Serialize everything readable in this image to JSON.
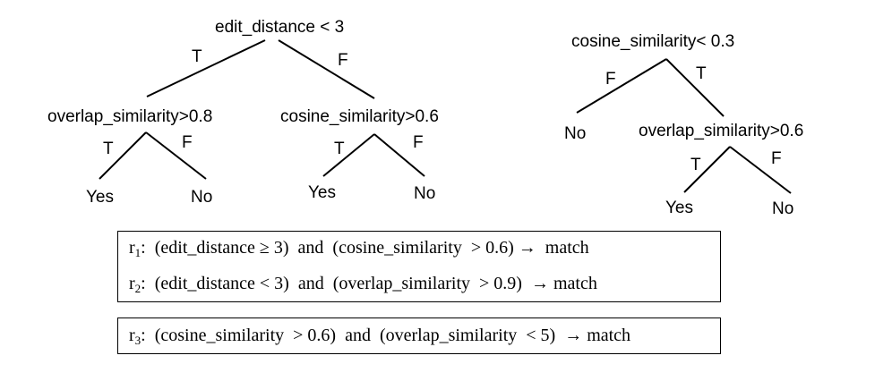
{
  "tree1": {
    "root": "edit_distance < 3",
    "root_true_edge": "T",
    "root_false_edge": "F",
    "left_node": "overlap_similarity>0.8",
    "left_true_edge": "T",
    "left_false_edge": "F",
    "left_true_leaf": "Yes",
    "left_false_leaf": "No",
    "right_node": "cosine_similarity>0.6",
    "right_true_edge": "T",
    "right_false_edge": "F",
    "right_true_leaf": "Yes",
    "right_false_leaf": "No"
  },
  "tree2": {
    "root": "cosine_similarity< 0.3",
    "root_false_edge": "F",
    "root_true_edge": "T",
    "false_leaf": "No",
    "right_node": "overlap_similarity>0.6",
    "right_true_edge": "T",
    "right_false_edge": "F",
    "right_true_leaf": "Yes",
    "right_false_leaf": "No"
  },
  "rules": {
    "r1": {
      "label": "r",
      "index": "1",
      "text": ":  (edit_distance ≥ 3)  and  (cosine_similarity  > 0.6) →  match"
    },
    "r2": {
      "label": "r",
      "index": "2",
      "text": ":  (edit_distance < 3)  and  (overlap_similarity  > 0.9)  → match"
    },
    "r3": {
      "label": "r",
      "index": "3",
      "text": ":  (cosine_similarity  > 0.6)  and  (overlap_similarity  < 5)  → match"
    }
  }
}
